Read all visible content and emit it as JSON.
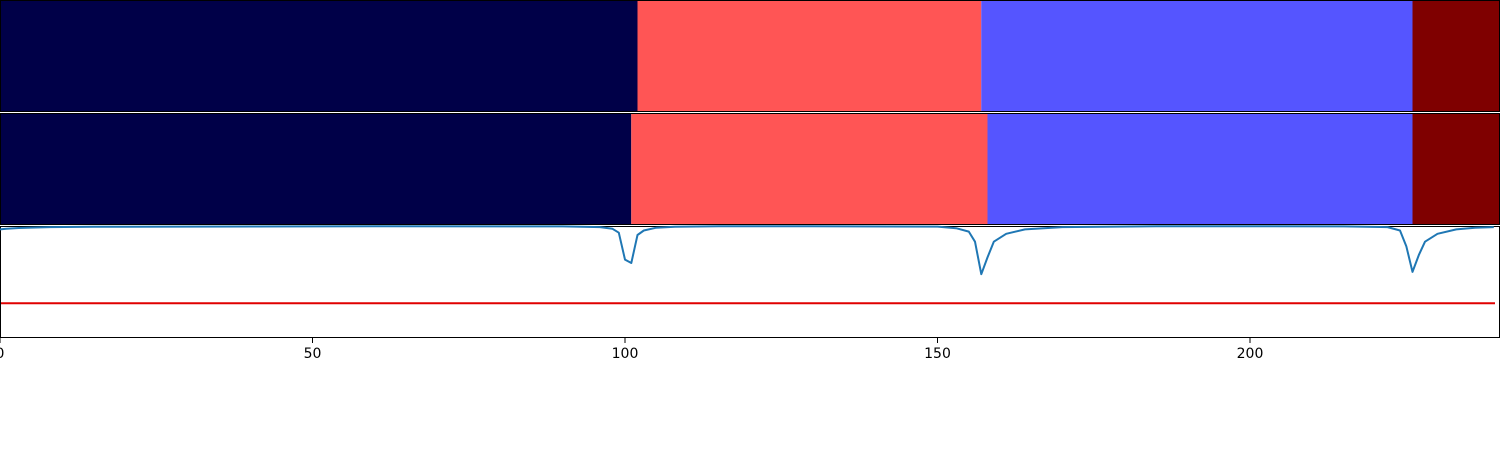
{
  "chart_data": {
    "type": "segmentation-timeline",
    "xlim": [
      0,
      240
    ],
    "x_ticks": [
      0,
      50,
      100,
      150,
      200
    ],
    "x_tick_labels": [
      "0",
      "50",
      "100",
      "150",
      "200"
    ],
    "colors": {
      "class0": "#000048",
      "class1": "#ff5555",
      "class2": "#5555ff",
      "class3": "#7f0000",
      "line": "#1f77b4",
      "threshold": "#e00000",
      "axis": "#000000"
    },
    "segment_rows": [
      {
        "segments": [
          {
            "start": 0,
            "end": 102,
            "class": "class0"
          },
          {
            "start": 102,
            "end": 157,
            "class": "class1"
          },
          {
            "start": 157,
            "end": 226,
            "class": "class2"
          },
          {
            "start": 226,
            "end": 240,
            "class": "class3"
          }
        ]
      },
      {
        "segments": [
          {
            "start": 0,
            "end": 101,
            "class": "class0"
          },
          {
            "start": 101,
            "end": 158,
            "class": "class1"
          },
          {
            "start": 158,
            "end": 226,
            "class": "class2"
          },
          {
            "start": 226,
            "end": 240,
            "class": "class3"
          }
        ]
      }
    ],
    "confidence": {
      "ylim": [
        0,
        1
      ],
      "threshold": 0.31,
      "x": [
        0,
        1,
        3,
        5,
        8,
        15,
        30,
        60,
        90,
        96,
        98,
        99,
        100,
        101,
        102,
        103,
        105,
        108,
        115,
        130,
        150,
        153,
        155,
        156,
        157,
        158,
        159,
        161,
        164,
        170,
        185,
        200,
        215,
        222,
        224,
        225,
        226,
        227,
        228,
        230,
        233,
        236,
        239
      ],
      "y": [
        0.97,
        0.975,
        0.982,
        0.986,
        0.99,
        0.993,
        0.995,
        0.997,
        0.996,
        0.99,
        0.975,
        0.94,
        0.7,
        0.67,
        0.92,
        0.96,
        0.985,
        0.993,
        0.997,
        0.998,
        0.995,
        0.98,
        0.95,
        0.86,
        0.57,
        0.72,
        0.86,
        0.93,
        0.97,
        0.99,
        0.997,
        0.998,
        0.996,
        0.99,
        0.96,
        0.82,
        0.59,
        0.74,
        0.86,
        0.93,
        0.97,
        0.985,
        0.99
      ]
    }
  }
}
